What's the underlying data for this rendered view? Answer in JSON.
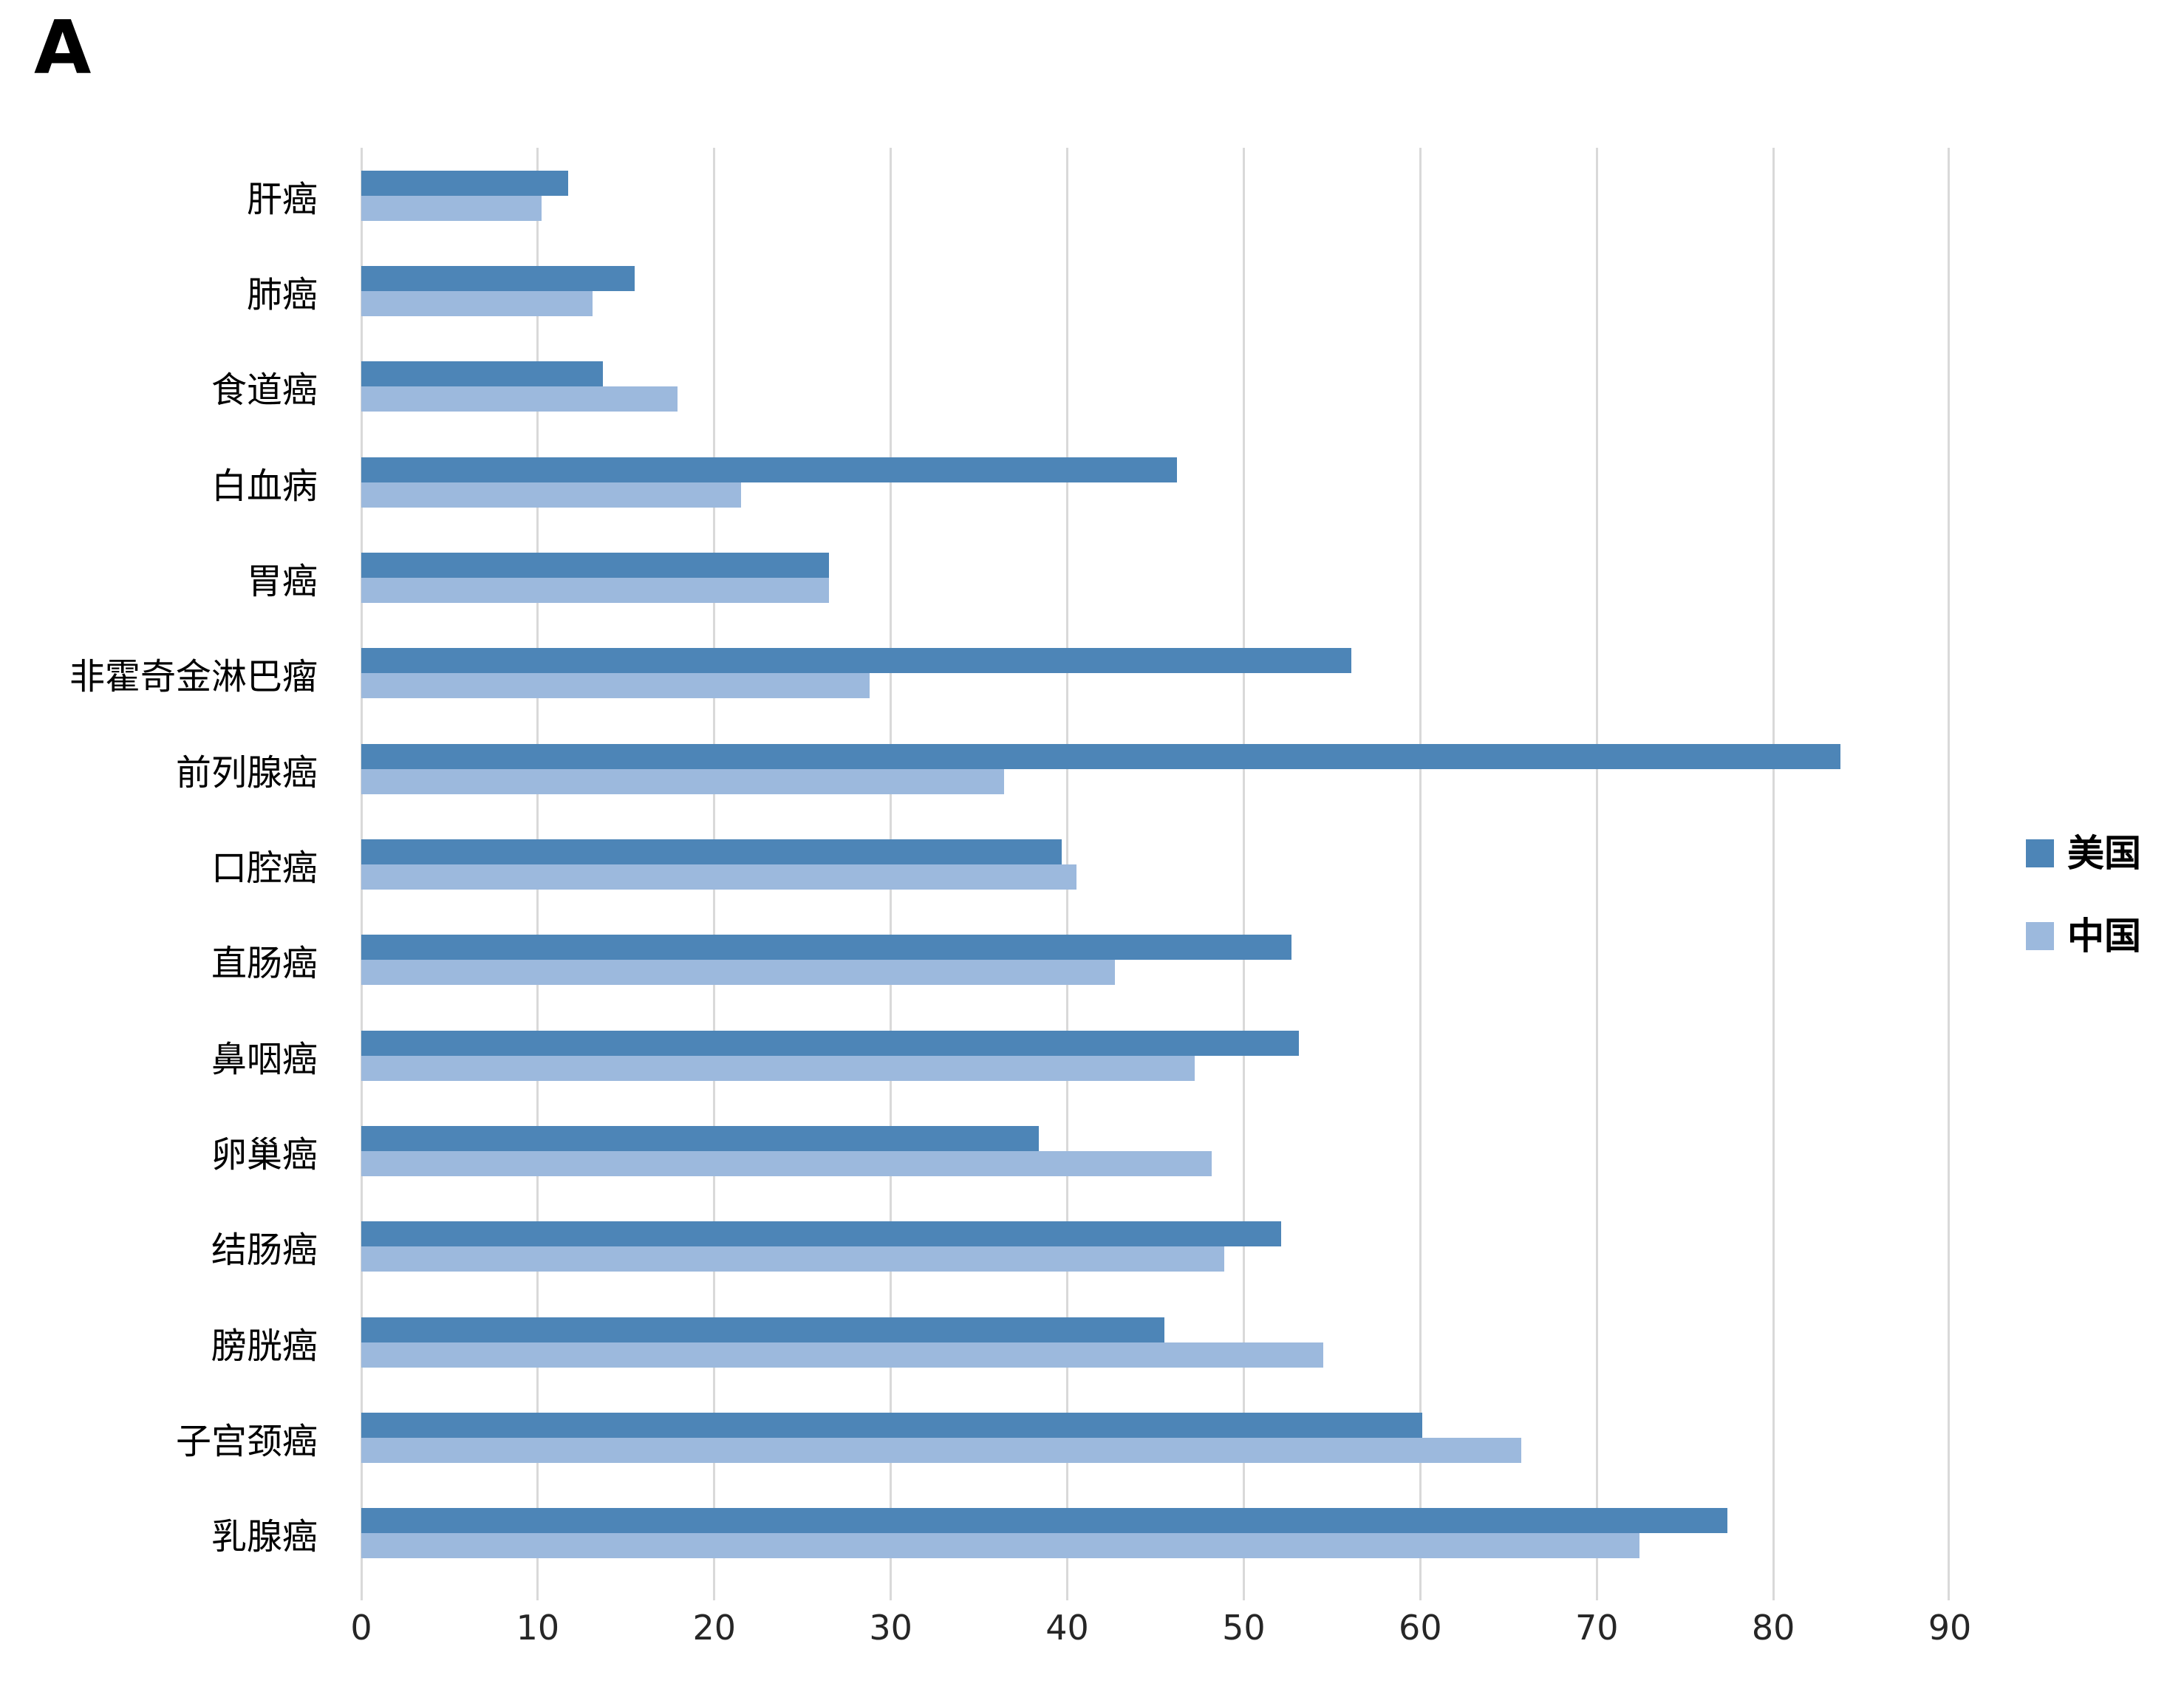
{
  "panel_label": "A",
  "colors": {
    "us_bar": "#4d85b7",
    "cn_bar": "#9cb9dd",
    "gridline": "#d9d9d9",
    "tick_text": "#262626",
    "label_text": "#000000",
    "background": "#ffffff"
  },
  "legend": {
    "items": [
      {
        "label": "美国",
        "color": "#4d85b7"
      },
      {
        "label": "中国",
        "color": "#9cb9dd"
      }
    ]
  },
  "chart_data": {
    "type": "bar",
    "orientation": "horizontal",
    "title": "",
    "xlabel": "",
    "ylabel": "",
    "grid": "vertical",
    "legend_position": "right-middle",
    "xlim": [
      0,
      90
    ],
    "x_ticks": [
      0,
      10,
      20,
      30,
      40,
      50,
      60,
      70,
      80,
      90
    ],
    "categories": [
      "肝癌",
      "肺癌",
      "食道癌",
      "白血病",
      "胃癌",
      "非霍奇金淋巴瘤",
      "前列腺癌",
      "口腔癌",
      "直肠癌",
      "鼻咽癌",
      "卵巢癌",
      "结肠癌",
      "膀胱癌",
      "子宫颈癌",
      "乳腺癌"
    ],
    "series": [
      {
        "name": "美国",
        "color": "#4d85b7",
        "values": [
          11.7,
          15.5,
          13.7,
          46.2,
          26.5,
          56.1,
          83.8,
          39.7,
          52.7,
          53.1,
          38.4,
          52.1,
          45.5,
          60.1,
          77.4
        ]
      },
      {
        "name": "中国",
        "color": "#9cb9dd",
        "values": [
          10.2,
          13.1,
          17.9,
          21.5,
          26.5,
          28.8,
          36.4,
          40.5,
          42.7,
          47.2,
          48.2,
          48.9,
          54.5,
          65.7,
          72.4
        ]
      }
    ]
  }
}
